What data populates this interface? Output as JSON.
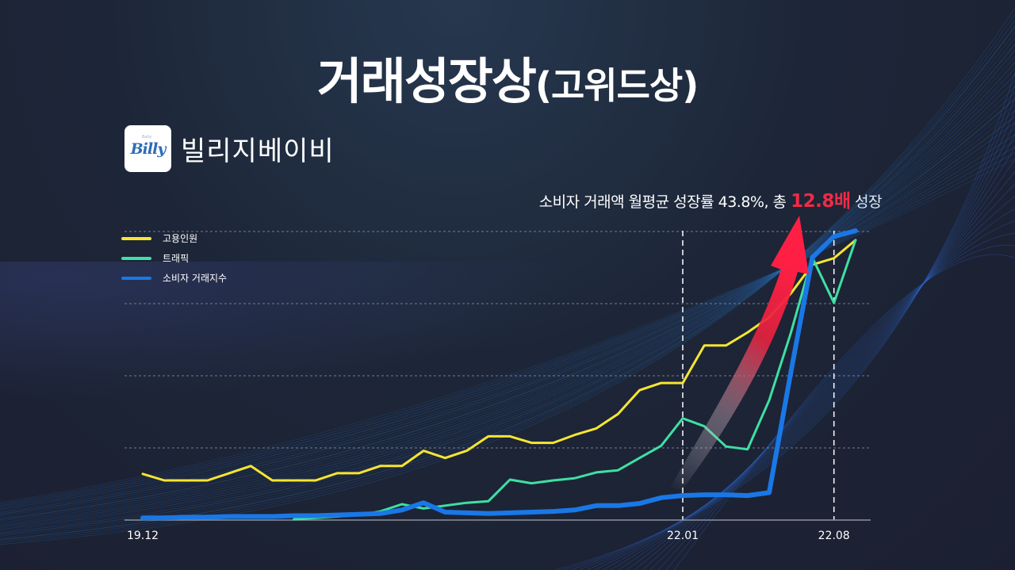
{
  "page": {
    "title_main": "거래성장상",
    "title_paren": "(고위드상)",
    "logo_text": "Billy",
    "company_name": "빌리지베이비",
    "annotation": {
      "prefix": "소비자 거래액 월평균 성장률 43.8%, 총 ",
      "highlight": "12.8배",
      "suffix": " 성장"
    },
    "colors": {
      "employees": "#f6e531",
      "traffic": "#3ee0a3",
      "consumer_index": "#1a78e6",
      "highlight": "#ef2b45",
      "arrow": "#ff1f44"
    }
  },
  "chart_data": {
    "type": "line",
    "title": "거래성장상(고위드상)",
    "subtitle": "빌리지베이비",
    "xlabel": "",
    "ylabel": "",
    "x_tick_labels": [
      "19.12",
      "22.01",
      "22.08"
    ],
    "x": [
      "19.12",
      "20.01",
      "20.02",
      "20.03",
      "20.04",
      "20.05",
      "20.06",
      "20.07",
      "20.08",
      "20.09",
      "20.10",
      "20.11",
      "20.12",
      "21.01",
      "21.02",
      "21.03",
      "21.04",
      "21.05",
      "21.06",
      "21.07",
      "21.08",
      "21.09",
      "21.10",
      "21.11",
      "21.12",
      "22.01",
      "22.02",
      "22.03",
      "22.04",
      "22.05",
      "22.06",
      "22.07",
      "22.08",
      "22.09"
    ],
    "ylim": [
      0,
      4
    ],
    "grid": {
      "horizontal_dashed": true,
      "y_values": [
        1,
        2,
        3,
        4
      ]
    },
    "vertical_markers": [
      "22.01",
      "22.08"
    ],
    "legend_position": "top-left",
    "legend": [
      "고용인원",
      "트래픽",
      "소비자 거래지수"
    ],
    "series": [
      {
        "name": "고용인원",
        "color": "#f6e531",
        "values": [
          0.64,
          0.55,
          0.55,
          0.55,
          0.65,
          0.75,
          0.55,
          0.55,
          0.55,
          0.65,
          0.65,
          0.75,
          0.75,
          0.96,
          0.86,
          0.96,
          1.16,
          1.16,
          1.07,
          1.07,
          1.18,
          1.27,
          1.47,
          1.8,
          1.9,
          1.9,
          2.42,
          2.42,
          2.6,
          2.81,
          3.14,
          3.54,
          3.63,
          3.88
        ]
      },
      {
        "name": "트래픽",
        "color": "#3ee0a3",
        "values": [
          null,
          null,
          null,
          null,
          null,
          null,
          null,
          0.01,
          0.03,
          0.05,
          0.07,
          0.12,
          0.22,
          0.16,
          0.2,
          0.24,
          0.26,
          0.56,
          0.51,
          0.55,
          0.58,
          0.66,
          0.69,
          0.86,
          1.03,
          1.41,
          1.3,
          1.02,
          0.98,
          1.66,
          2.59,
          3.64,
          3.01,
          3.88
        ]
      },
      {
        "name": "소비자 거래지수",
        "color": "#1a78e6",
        "values": [
          0.03,
          0.03,
          0.04,
          0.04,
          0.05,
          0.05,
          0.05,
          0.06,
          0.06,
          0.07,
          0.08,
          0.09,
          0.14,
          0.24,
          0.11,
          0.1,
          0.09,
          0.1,
          0.11,
          0.12,
          0.14,
          0.2,
          0.2,
          0.23,
          0.31,
          0.34,
          0.35,
          0.35,
          0.34,
          0.38,
          2.04,
          3.64,
          3.93,
          4.01
        ]
      }
    ],
    "annotation": "소비자 거래액 월평균 성장률 43.8%, 총 12.8배 성장"
  }
}
